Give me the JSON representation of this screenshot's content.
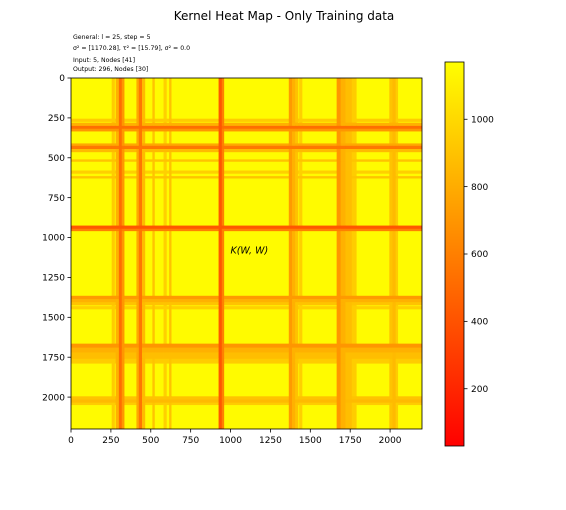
{
  "chart_data": {
    "type": "heatmap",
    "title": "Kernel Heat Map - Only Training data",
    "info_lines": [
      "General: l = 25, step = 5",
      "σ² = [1170.28], τ² = [15.79], σ² = 0.0",
      "Input: 5, Nodes [41]",
      "Output: 296, Nodes [30]"
    ],
    "annotation": "K(W, W)",
    "annotation_pos": [
      1000,
      1100
    ],
    "n": 2200,
    "xlim": [
      0,
      2200
    ],
    "ylim": [
      2200,
      0
    ],
    "xticks": [
      "0",
      "250",
      "500",
      "750",
      "1000",
      "1250",
      "1500",
      "1750",
      "2000"
    ],
    "yticks": [
      "0",
      "250",
      "500",
      "750",
      "1000",
      "1250",
      "1500",
      "1750",
      "2000"
    ],
    "tick_values": [
      0,
      250,
      500,
      750,
      1000,
      1250,
      1500,
      1750,
      2000
    ],
    "colormap": "autumn",
    "vmin": 30,
    "vmax": 1170,
    "colorbar_ticks": [
      "200",
      "400",
      "600",
      "800",
      "1000"
    ],
    "colorbar_tick_values": [
      200,
      400,
      600,
      800,
      1000
    ],
    "base_value": 1150,
    "bands": [
      {
        "start": 255,
        "end": 275,
        "value": 940
      },
      {
        "start": 280,
        "end": 300,
        "value": 820
      },
      {
        "start": 300,
        "end": 318,
        "value": 520
      },
      {
        "start": 318,
        "end": 335,
        "value": 700
      },
      {
        "start": 410,
        "end": 425,
        "value": 780
      },
      {
        "start": 425,
        "end": 445,
        "value": 560
      },
      {
        "start": 445,
        "end": 465,
        "value": 860
      },
      {
        "start": 510,
        "end": 525,
        "value": 900
      },
      {
        "start": 580,
        "end": 600,
        "value": 960
      },
      {
        "start": 615,
        "end": 630,
        "value": 900
      },
      {
        "start": 925,
        "end": 945,
        "value": 420
      },
      {
        "start": 945,
        "end": 960,
        "value": 600
      },
      {
        "start": 1365,
        "end": 1385,
        "value": 720
      },
      {
        "start": 1385,
        "end": 1405,
        "value": 820
      },
      {
        "start": 1405,
        "end": 1425,
        "value": 900
      },
      {
        "start": 1430,
        "end": 1450,
        "value": 960
      },
      {
        "start": 1665,
        "end": 1690,
        "value": 700
      },
      {
        "start": 1690,
        "end": 1720,
        "value": 820
      },
      {
        "start": 1720,
        "end": 1760,
        "value": 880
      },
      {
        "start": 1760,
        "end": 1790,
        "value": 940
      },
      {
        "start": 1995,
        "end": 2015,
        "value": 900
      },
      {
        "start": 2015,
        "end": 2035,
        "value": 860
      },
      {
        "start": 2035,
        "end": 2050,
        "value": 940
      }
    ]
  },
  "colors": {
    "background": "#ffffff",
    "axis": "#000000"
  }
}
